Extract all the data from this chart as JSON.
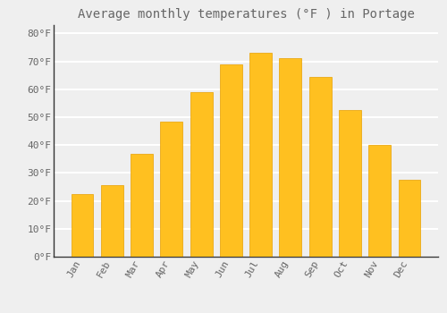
{
  "title": "Average monthly temperatures (°F ) in Portage",
  "months": [
    "Jan",
    "Feb",
    "Mar",
    "Apr",
    "May",
    "Jun",
    "Jul",
    "Aug",
    "Sep",
    "Oct",
    "Nov",
    "Dec"
  ],
  "values": [
    22.5,
    25.5,
    37,
    48.5,
    59,
    69,
    73,
    71,
    64.5,
    52.5,
    40,
    27.5
  ],
  "bar_color_top": "#FFC020",
  "bar_color_bottom": "#FFB000",
  "bar_edge_color": "#E8A000",
  "background_color": "#EFEFEF",
  "grid_color": "#FFFFFF",
  "text_color": "#666666",
  "ytick_labels": [
    "0°F",
    "10°F",
    "20°F",
    "30°F",
    "40°F",
    "50°F",
    "60°F",
    "70°F",
    "80°F"
  ],
  "ytick_values": [
    0,
    10,
    20,
    30,
    40,
    50,
    60,
    70,
    80
  ],
  "ylim": [
    0,
    83
  ],
  "title_fontsize": 10,
  "tick_fontsize": 8
}
